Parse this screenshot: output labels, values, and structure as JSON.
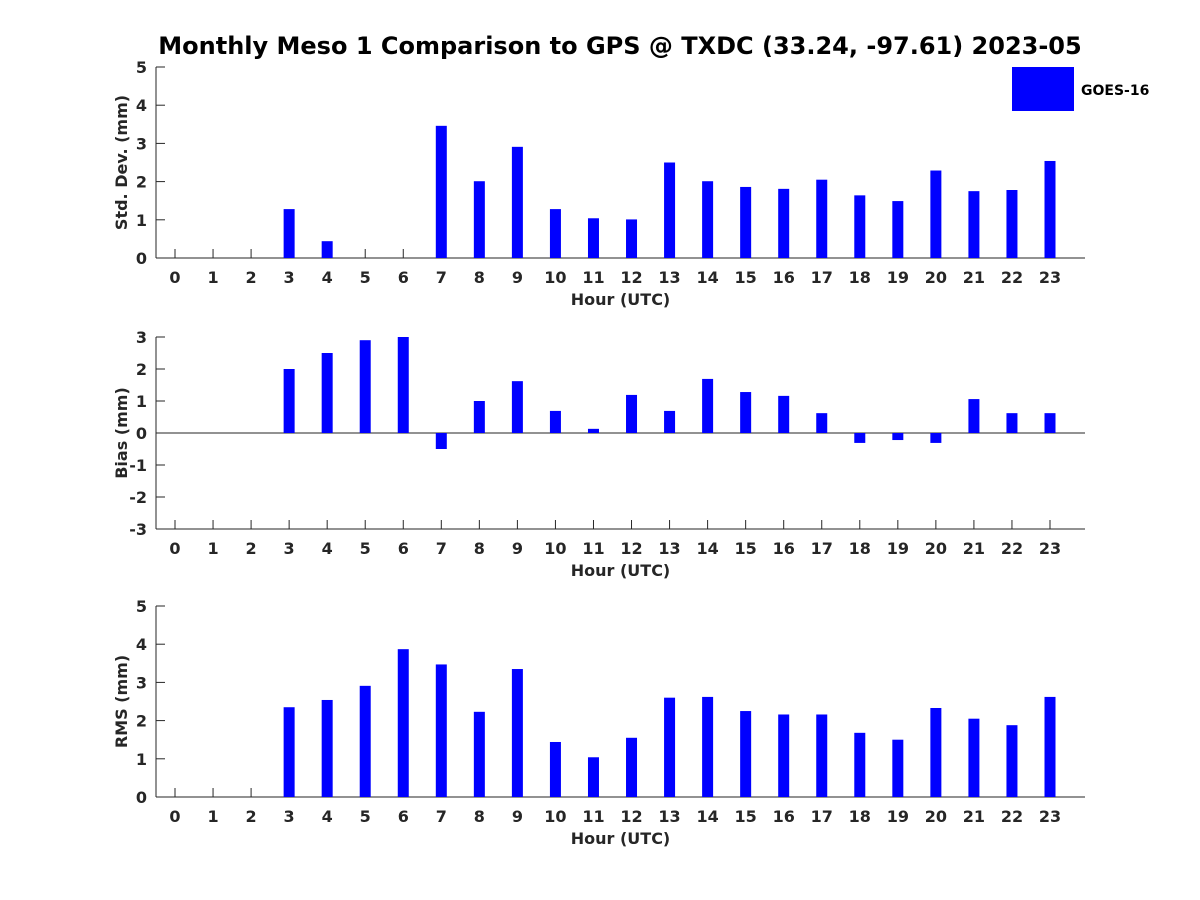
{
  "title": "Monthly Meso 1 Comparison to GPS @ TXDC (33.24, -97.61) 2023-05",
  "legend": {
    "label": "GOES-16",
    "color": "#0000ff",
    "placement": "top-right"
  },
  "chart_data": [
    {
      "type": "bar",
      "xlabel": "Hour (UTC)",
      "ylabel": "Std. Dev. (mm)",
      "ylim": [
        0,
        5
      ],
      "yticks": [
        0,
        1,
        2,
        3,
        4,
        5
      ],
      "categories": [
        "0",
        "1",
        "2",
        "3",
        "4",
        "5",
        "6",
        "7",
        "8",
        "9",
        "10",
        "11",
        "12",
        "13",
        "14",
        "15",
        "16",
        "17",
        "18",
        "19",
        "20",
        "21",
        "22",
        "23"
      ],
      "series": [
        {
          "name": "GOES-16",
          "values": [
            null,
            null,
            null,
            1.28,
            0.44,
            null,
            null,
            3.46,
            2.01,
            2.91,
            1.28,
            1.04,
            1.01,
            2.5,
            2.01,
            1.86,
            1.81,
            2.05,
            1.64,
            1.49,
            2.29,
            1.75,
            1.78,
            2.54
          ]
        }
      ],
      "grid": false
    },
    {
      "type": "bar",
      "xlabel": "Hour (UTC)",
      "ylabel": "Bias (mm)",
      "ylim": [
        -3,
        3
      ],
      "yticks": [
        -3,
        -2,
        -1,
        0,
        1,
        2,
        3
      ],
      "categories": [
        "0",
        "1",
        "2",
        "3",
        "4",
        "5",
        "6",
        "7",
        "8",
        "9",
        "10",
        "11",
        "12",
        "13",
        "14",
        "15",
        "16",
        "17",
        "18",
        "19",
        "20",
        "21",
        "22",
        "23"
      ],
      "series": [
        {
          "name": "GOES-16",
          "values": [
            null,
            null,
            null,
            2.0,
            2.5,
            2.9,
            3.0,
            -0.5,
            1.0,
            1.62,
            0.69,
            0.13,
            1.19,
            0.69,
            1.69,
            1.28,
            1.16,
            0.62,
            -0.31,
            -0.22,
            -0.31,
            1.06,
            0.62,
            0.62
          ]
        }
      ],
      "grid": false
    },
    {
      "type": "bar",
      "xlabel": "Hour (UTC)",
      "ylabel": "RMS (mm)",
      "ylim": [
        0,
        5
      ],
      "yticks": [
        0,
        1,
        2,
        3,
        4,
        5
      ],
      "categories": [
        "0",
        "1",
        "2",
        "3",
        "4",
        "5",
        "6",
        "7",
        "8",
        "9",
        "10",
        "11",
        "12",
        "13",
        "14",
        "15",
        "16",
        "17",
        "18",
        "19",
        "20",
        "21",
        "22",
        "23"
      ],
      "series": [
        {
          "name": "GOES-16",
          "values": [
            null,
            null,
            null,
            2.35,
            2.54,
            2.91,
            3.87,
            3.47,
            2.23,
            3.35,
            1.44,
            1.04,
            1.55,
            2.6,
            2.62,
            2.25,
            2.16,
            2.16,
            1.68,
            1.5,
            2.33,
            2.05,
            1.88,
            2.62
          ]
        }
      ],
      "grid": false
    }
  ]
}
